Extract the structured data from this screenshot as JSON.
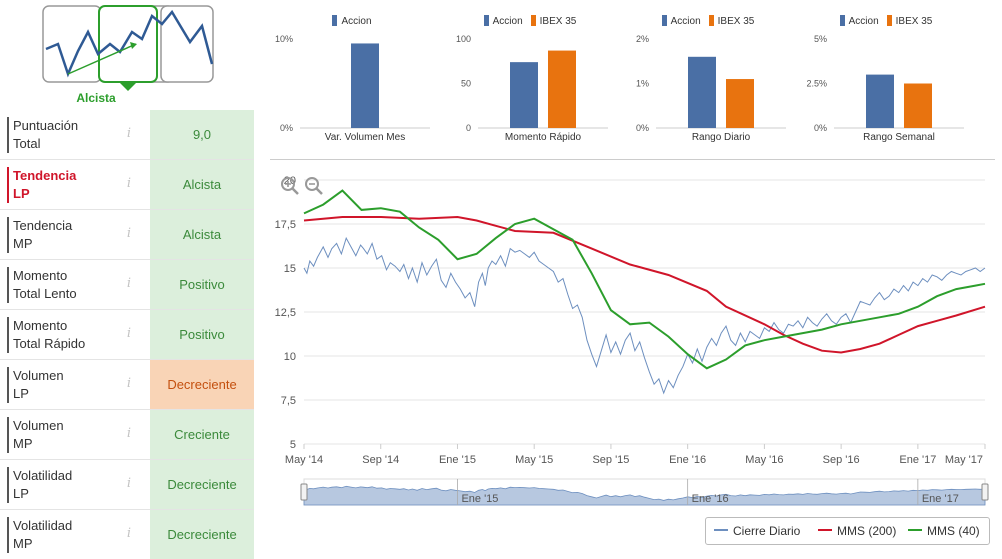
{
  "trend_icon": {
    "label": "Alcista"
  },
  "rating_rows": [
    {
      "label_line1": "Puntuación",
      "label_line2": "Total",
      "value": "9,0",
      "highlight": false,
      "value_style": "green"
    },
    {
      "label_line1": "Tendencia",
      "label_line2": "LP",
      "value": "Alcista",
      "highlight": true,
      "value_style": "green"
    },
    {
      "label_line1": "Tendencia",
      "label_line2": "MP",
      "value": "Alcista",
      "highlight": false,
      "value_style": "green"
    },
    {
      "label_line1": "Momento",
      "label_line2": "Total Lento",
      "value": "Positivo",
      "highlight": false,
      "value_style": "green"
    },
    {
      "label_line1": "Momento",
      "label_line2": "Total Rápido",
      "value": "Positivo",
      "highlight": false,
      "value_style": "green"
    },
    {
      "label_line1": "Volumen",
      "label_line2": "LP",
      "value": "Decreciente",
      "highlight": false,
      "value_style": "orange"
    },
    {
      "label_line1": "Volumen",
      "label_line2": "MP",
      "value": "Creciente",
      "highlight": false,
      "value_style": "green"
    },
    {
      "label_line1": "Volatilidad",
      "label_line2": "LP",
      "value": "Decreciente",
      "highlight": false,
      "value_style": "green"
    },
    {
      "label_line1": "Volatilidad",
      "label_line2": "MP",
      "value": "Decreciente",
      "highlight": false,
      "value_style": "green"
    }
  ],
  "info_glyph": "i",
  "colors": {
    "accion": "#4a6fa5",
    "ibex": "#e8730f",
    "green": "#2c9e2c",
    "red": "#d0152a",
    "daily": "#6d8fbf"
  },
  "chart_data": [
    {
      "type": "bar",
      "xlabel": "Var. Volumen Mes",
      "series": [
        {
          "name": "Accion",
          "values": [
            9.5
          ]
        }
      ],
      "ylim": [
        0,
        10
      ],
      "ticks": [
        "10%",
        "0%"
      ]
    },
    {
      "type": "bar",
      "xlabel": "Momento Rápido",
      "series": [
        {
          "name": "Accion",
          "values": [
            74
          ]
        },
        {
          "name": "IBEX 35",
          "values": [
            87
          ]
        }
      ],
      "ylim": [
        0,
        100
      ],
      "ticks": [
        "100",
        "50",
        "0"
      ]
    },
    {
      "type": "bar",
      "xlabel": "Rango Diario",
      "series": [
        {
          "name": "Accion",
          "values": [
            1.6
          ]
        },
        {
          "name": "IBEX 35",
          "values": [
            1.1
          ]
        }
      ],
      "ylim": [
        0,
        2
      ],
      "ticks": [
        "2%",
        "1%",
        "0%"
      ]
    },
    {
      "type": "bar",
      "xlabel": "Rango Semanal",
      "series": [
        {
          "name": "Accion",
          "values": [
            3.0
          ]
        },
        {
          "name": "IBEX 35",
          "values": [
            2.5
          ]
        }
      ],
      "ylim": [
        0,
        5
      ],
      "ticks": [
        "5%",
        "2.5%",
        "0%"
      ]
    },
    {
      "type": "line",
      "yticks": [
        "20",
        "17,5",
        "15",
        "12,5",
        "10",
        "7,5",
        "5"
      ],
      "ylim": [
        5,
        20
      ],
      "xticks": [
        "May '14",
        "Sep '14",
        "Ene '15",
        "May '15",
        "Sep '15",
        "Ene '16",
        "May '16",
        "Sep '16",
        "Ene '17",
        "May '17"
      ],
      "navigator_labels": [
        "Ene '15",
        "Ene '16",
        "Ene '17"
      ],
      "series": [
        {
          "name": "Cierre Diario",
          "color": "#6d8fbf",
          "x": [
            0,
            0.15,
            0.3,
            0.5,
            0.7,
            1,
            1.25,
            1.45,
            1.7,
            1.95,
            2.2,
            2.45,
            2.7,
            2.95,
            3.1,
            3.3,
            3.55,
            3.8,
            4.05,
            4.3,
            4.5,
            4.75,
            5,
            5.2,
            5.45,
            5.65,
            5.9,
            6.15,
            6.4,
            6.65,
            6.9,
            7.15,
            7.4,
            7.65,
            7.9,
            8.15,
            8.4,
            8.65,
            8.9,
            9.1,
            9.3,
            9.45,
            9.6,
            9.8,
            10,
            10.25,
            10.5,
            10.75,
            11,
            11.25,
            11.5,
            11.75,
            12,
            12.25,
            12.5,
            12.75,
            13,
            13.25,
            13.5,
            13.75,
            14,
            14.25,
            14.5,
            14.75,
            15,
            15.25,
            15.5,
            15.75,
            16,
            16.25,
            16.5,
            16.75,
            17,
            17.25,
            17.5,
            17.75,
            18,
            18.25,
            18.5,
            18.75,
            19,
            19.25,
            19.5,
            19.75,
            20,
            20.25,
            20.5,
            20.75,
            21,
            21.25,
            21.5,
            21.75,
            22,
            22.25,
            22.5,
            22.75,
            23,
            23.25,
            23.5,
            23.75,
            24,
            24.25,
            24.5,
            24.75,
            25,
            25.25,
            25.5,
            25.75,
            26,
            26.25,
            26.5,
            26.75,
            27,
            27.25,
            27.5,
            27.75,
            28,
            28.25,
            28.5,
            28.75,
            29,
            29.25,
            29.5,
            29.75,
            30,
            30.25,
            30.5,
            30.75,
            31,
            31.25,
            31.5,
            31.75,
            32,
            32.25,
            32.5,
            32.75,
            33,
            33.25,
            33.5,
            33.75,
            34,
            34.25,
            34.5,
            34.75,
            35,
            35.25,
            35.5
          ],
          "y": [
            15,
            14.7,
            15.4,
            15.1,
            15.6,
            16.2,
            15.6,
            16.1,
            16.4,
            15.8,
            16.7,
            16.2,
            15.7,
            16.3,
            16.1,
            15.8,
            16.4,
            15.5,
            15.7,
            14.9,
            15.3,
            15.1,
            14.8,
            15.2,
            14.4,
            15.0,
            14.2,
            15.3,
            14.6,
            15.1,
            15.5,
            14.3,
            13.9,
            14.7,
            14.2,
            13.8,
            13.3,
            13.6,
            12.8,
            14.2,
            14.7,
            14.0,
            15.0,
            15.4,
            15.2,
            15.7,
            15.1,
            16.1,
            15.9,
            16.0,
            15.8,
            15.6,
            15.9,
            15.4,
            15.2,
            15.0,
            14.8,
            14.2,
            14.4,
            13.5,
            12.7,
            12.9,
            12.2,
            10.9,
            10.1,
            9.4,
            10.3,
            11.2,
            10.2,
            10.8,
            10.1,
            10.9,
            11.3,
            10.3,
            10.8,
            9.9,
            9.1,
            8.4,
            8.7,
            7.9,
            8.6,
            8.2,
            8.9,
            9.4,
            10.1,
            9.6,
            10.4,
            9.7,
            10.5,
            11.0,
            10.6,
            11.3,
            11.7,
            10.9,
            10.6,
            11.3,
            10.8,
            11.4,
            11.2,
            11.0,
            11.6,
            11.4,
            11.9,
            11.5,
            11.3,
            11.8,
            11.7,
            12.0,
            11.6,
            12.2,
            11.9,
            11.7,
            12.1,
            12.4,
            12.0,
            11.8,
            12.2,
            12.4,
            11.9,
            12.5,
            13.1,
            13.0,
            12.9,
            13.3,
            13.6,
            13.2,
            13.4,
            13.8,
            13.6,
            14.0,
            13.7,
            14.2,
            14.0,
            14.4,
            14.2,
            14.6,
            14.5,
            14.3,
            14.6,
            14.8,
            14.7,
            14.6,
            14.8,
            14.9,
            15.0,
            14.8,
            15.0
          ]
        },
        {
          "name": "MMS (200)",
          "color": "#d0152a",
          "x": [
            0,
            2,
            4,
            6,
            8,
            9,
            10,
            11,
            13,
            15,
            17,
            19,
            21,
            22,
            24,
            25,
            26,
            27,
            28,
            29,
            30,
            31,
            32,
            33,
            34,
            35.5
          ],
          "y": [
            17.7,
            17.9,
            17.9,
            17.8,
            17.9,
            17.7,
            17.4,
            17.1,
            17.0,
            16.1,
            15.2,
            14.6,
            13.7,
            12.8,
            11.8,
            11.2,
            10.7,
            10.3,
            10.2,
            10.4,
            10.7,
            11.2,
            11.7,
            12.0,
            12.3,
            12.8
          ]
        },
        {
          "name": "MMS (40)",
          "color": "#2c9e2c",
          "x": [
            0,
            1,
            2,
            3,
            4,
            5,
            6,
            7,
            8,
            9,
            10,
            11,
            12,
            13,
            14,
            15,
            16,
            17,
            18,
            19,
            20,
            21,
            22,
            23,
            24,
            25,
            26,
            27,
            28,
            29,
            30,
            31,
            32,
            33,
            34,
            35,
            35.5
          ],
          "y": [
            18.1,
            18.6,
            19.4,
            18.3,
            18.4,
            18.2,
            17.3,
            16.6,
            15.5,
            15.8,
            16.7,
            17.5,
            17.8,
            17.2,
            16.6,
            14.7,
            12.6,
            11.8,
            11.9,
            11.1,
            10.1,
            9.3,
            9.8,
            10.6,
            10.9,
            11.1,
            11.3,
            11.5,
            11.8,
            12.0,
            12.2,
            12.4,
            12.8,
            13.4,
            13.8,
            14.0,
            14.1
          ]
        }
      ]
    }
  ]
}
